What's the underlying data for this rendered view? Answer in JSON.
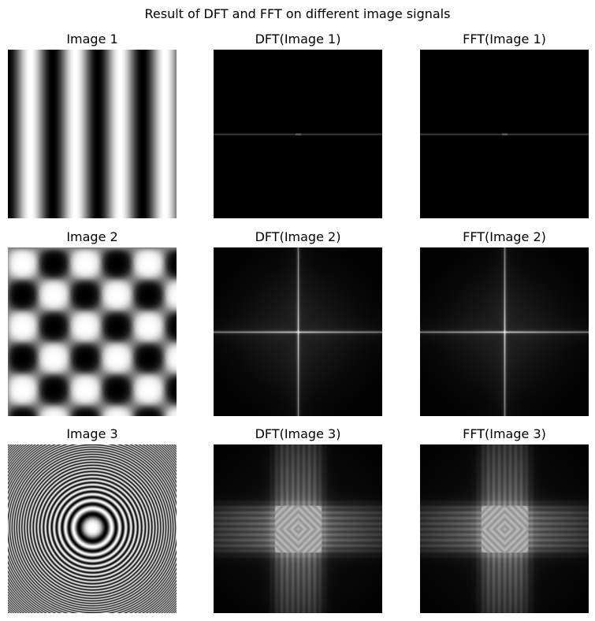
{
  "figure": {
    "title": "Result of DFT and FFT on different image signals"
  },
  "rows": [
    {
      "titles": [
        "Image 1",
        "DFT(Image 1)",
        "FFT(Image 1)"
      ],
      "signal": "vertical-stripes"
    },
    {
      "titles": [
        "Image 2",
        "DFT(Image 2)",
        "FFT(Image 2)"
      ],
      "signal": "checkerboard"
    },
    {
      "titles": [
        "Image 3",
        "DFT(Image 3)",
        "FFT(Image 3)"
      ],
      "signal": "concentric-rings"
    }
  ]
}
